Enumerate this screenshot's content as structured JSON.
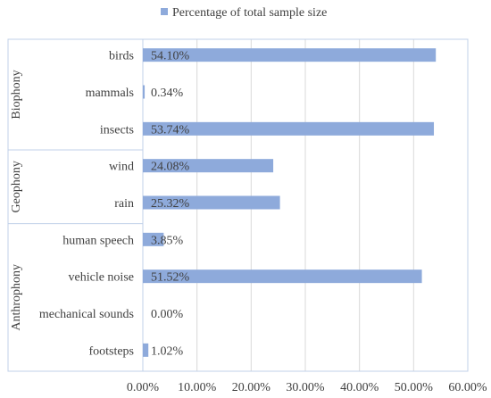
{
  "chart_data": {
    "type": "bar",
    "orientation": "horizontal",
    "title": "",
    "xlabel": "",
    "ylabel": "",
    "legend": {
      "position": "top",
      "entries": [
        "Percentage of total sample size"
      ]
    },
    "grid": true,
    "xlim": [
      0,
      60
    ],
    "x_ticks": [
      "0.00%",
      "10.00%",
      "20.00%",
      "30.00%",
      "40.00%",
      "50.00%",
      "60.00%"
    ],
    "groups": [
      {
        "name": "Biophony",
        "categories": [
          "birds",
          "mammals",
          "insects"
        ]
      },
      {
        "name": "Geophony",
        "categories": [
          "wind",
          "rain"
        ]
      },
      {
        "name": "Anthrophony",
        "categories": [
          "human speech",
          "vehicle noise",
          "mechanical sounds",
          "footsteps"
        ]
      }
    ],
    "categories": [
      "birds",
      "mammals",
      "insects",
      "wind",
      "rain",
      "human speech",
      "vehicle noise",
      "mechanical sounds",
      "footsteps"
    ],
    "series": [
      {
        "name": "Percentage of total sample size",
        "color": "#8eaadb",
        "values": [
          54.1,
          0.34,
          53.74,
          24.08,
          25.32,
          3.85,
          51.52,
          0.0,
          1.02
        ],
        "labels": [
          "54.10%",
          "0.34%",
          "53.74%",
          "24.08%",
          "25.32%",
          "3.85%",
          "51.52%",
          "0.00%",
          "1.02%"
        ]
      }
    ]
  }
}
